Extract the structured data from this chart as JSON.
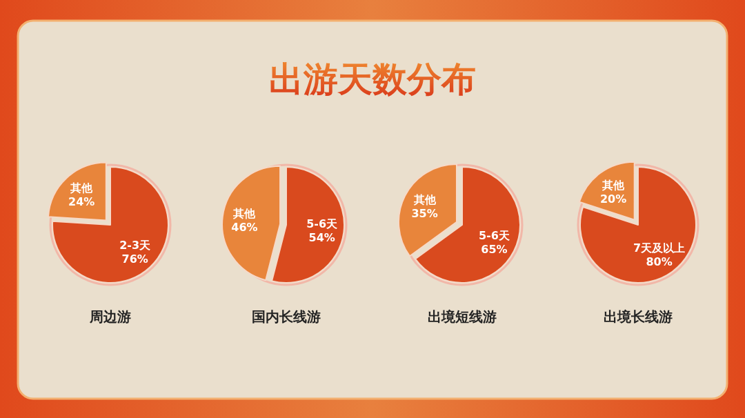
{
  "chart_data": [
    {
      "type": "pie",
      "title": "出游天数分布",
      "xlabel": "周边游",
      "categories": [
        "2-3天",
        "其他"
      ],
      "values": [
        76,
        24
      ],
      "value_labels": [
        "76%",
        "24%"
      ],
      "colors": [
        "#d94a1e",
        "#e8853b"
      ]
    },
    {
      "type": "pie",
      "xlabel": "国内长线游",
      "categories": [
        "5-6天",
        "其他"
      ],
      "values": [
        54,
        46
      ],
      "value_labels": [
        "54%",
        "46%"
      ],
      "colors": [
        "#d94a1e",
        "#e8853b"
      ]
    },
    {
      "type": "pie",
      "xlabel": "出境短线游",
      "categories": [
        "5-6天",
        "其他"
      ],
      "values": [
        65,
        35
      ],
      "value_labels": [
        "65%",
        "35%"
      ],
      "colors": [
        "#d94a1e",
        "#e8853b"
      ]
    },
    {
      "type": "pie",
      "xlabel": "出境长线游",
      "categories": [
        "7天及以上",
        "其他"
      ],
      "values": [
        80,
        20
      ],
      "value_labels": [
        "80%",
        "20%"
      ],
      "colors": [
        "#d94a1e",
        "#e8853b"
      ]
    }
  ]
}
